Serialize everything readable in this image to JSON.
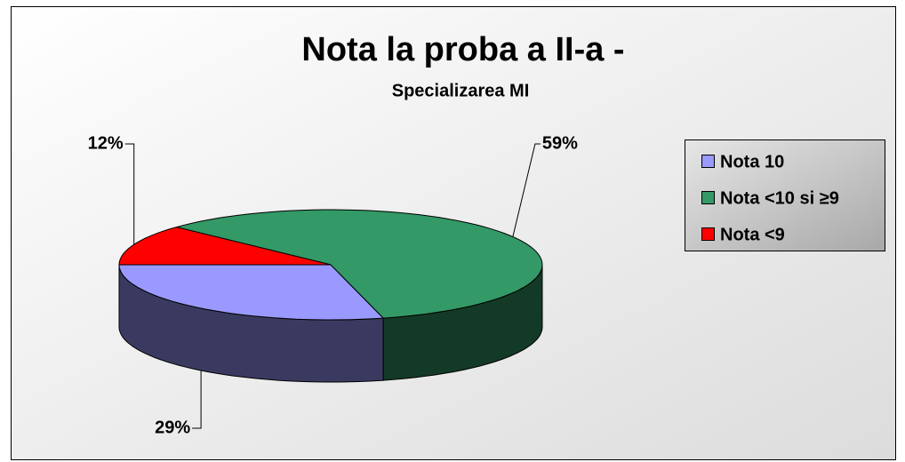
{
  "chart_data": {
    "type": "pie",
    "title": "Nota la proba a II-a -",
    "subtitle": "Specializarea MI",
    "categories": [
      "Nota 10",
      "Nota <10 si ≥9",
      "Nota <9"
    ],
    "values": [
      29,
      59,
      12
    ],
    "value_labels": [
      "29%",
      "59%",
      "12%"
    ],
    "colors": [
      "#9999ff",
      "#339966",
      "#ff0000"
    ],
    "legend": "right"
  }
}
